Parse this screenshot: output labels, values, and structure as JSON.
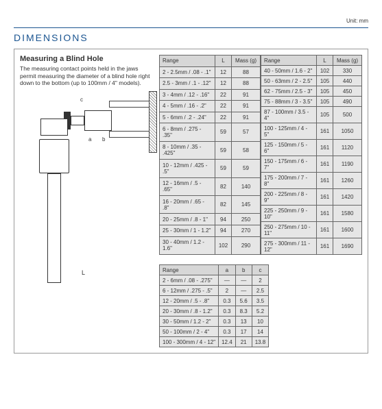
{
  "section_title": "DIMENSIONS",
  "unit_label": "Unit: mm",
  "intro": {
    "title": "Measuring a Blind Hole",
    "body": "The measuring contact points held in the jaws permit measuring the diameter of a blind hole right down to the bottom (up to 100mm / 4\" models)."
  },
  "dims": {
    "L": "L",
    "a": "a",
    "b": "b",
    "c": "c"
  },
  "main_headers": {
    "range": "Range",
    "L": "L",
    "mass": "Mass (g)"
  },
  "left_rows": [
    {
      "r": "2 - 2.5mm / .08 - .1\"",
      "L": "12",
      "m": "88"
    },
    {
      "r": "2.5 - 3mm / .1 - .12\"",
      "L": "12",
      "m": "88"
    },
    {
      "r": "3 - 4mm / .12 - .16\"",
      "L": "22",
      "m": "91"
    },
    {
      "r": "4 - 5mm / .16 - .2\"",
      "L": "22",
      "m": "91"
    },
    {
      "r": "5 - 6mm / .2 - .24\"",
      "L": "22",
      "m": "91"
    },
    {
      "r": "6 - 8mm / .275 - .35\"",
      "L": "59",
      "m": "57"
    },
    {
      "r": "8 - 10mm / .35 - .425\"",
      "L": "59",
      "m": "58"
    },
    {
      "r": "10 - 12mm / .425 - .5\"",
      "L": "59",
      "m": "59"
    },
    {
      "r": "12 - 16mm / .5 - .65\"",
      "L": "82",
      "m": "140"
    },
    {
      "r": "16 - 20mm / .65 - .8\"",
      "L": "82",
      "m": "145"
    },
    {
      "r": "20 - 25mm / .8 - 1\"",
      "L": "94",
      "m": "250"
    },
    {
      "r": "25 - 30mm / 1 - 1.2\"",
      "L": "94",
      "m": "270"
    },
    {
      "r": "30 - 40mm / 1.2 - 1.6\"",
      "L": "102",
      "m": "290"
    }
  ],
  "right_rows": [
    {
      "r": "40 - 50mm / 1.6 - 2\"",
      "L": "102",
      "m": "330"
    },
    {
      "r": "50 - 63mm / 2 - 2.5\"",
      "L": "105",
      "m": "440"
    },
    {
      "r": "62 - 75mm / 2.5 - 3\"",
      "L": "105",
      "m": "450"
    },
    {
      "r": "75 - 88mm / 3 - 3.5\"",
      "L": "105",
      "m": "490"
    },
    {
      "r": "87 - 100mm / 3.5 - 4\"",
      "L": "105",
      "m": "500"
    },
    {
      "r": "100 - 125mm / 4 - 5\"",
      "L": "161",
      "m": "1050"
    },
    {
      "r": "125 - 150mm / 5 - 6\"",
      "L": "161",
      "m": "1120"
    },
    {
      "r": "150 - 175mm / 6 - 7\"",
      "L": "161",
      "m": "1190"
    },
    {
      "r": "175 - 200mm / 7 - 8\"",
      "L": "161",
      "m": "1260"
    },
    {
      "r": "200 - 225mm / 8 - 9\"",
      "L": "161",
      "m": "1420"
    },
    {
      "r": "225 - 250mm / 9 - 10\"",
      "L": "161",
      "m": "1580"
    },
    {
      "r": "250 - 275mm / 10 - 11\"",
      "L": "161",
      "m": "1600"
    },
    {
      "r": "275 - 300mm / 11 - 12\"",
      "L": "161",
      "m": "1690"
    }
  ],
  "abc_headers": {
    "range": "Range",
    "a": "a",
    "b": "b",
    "c": "c"
  },
  "abc_rows": [
    {
      "r": "2 - 6mm / .08 - .275\"",
      "a": "—",
      "b": "—",
      "c": "2"
    },
    {
      "r": "6 - 12mm / .275 - .5\"",
      "a": "2",
      "b": "—",
      "c": "2.5"
    },
    {
      "r": "12 - 20mm / .5 - .8\"",
      "a": "0.3",
      "b": "5.6",
      "c": "3.5"
    },
    {
      "r": "20 - 30mm / .8 - 1.2\"",
      "a": "0.3",
      "b": "8.3",
      "c": "5.2"
    },
    {
      "r": "30 - 50mm / 1.2 - 2\"",
      "a": "0.3",
      "b": "13",
      "c": "10"
    },
    {
      "r": "50 - 100mm / 2 - 4\"",
      "a": "0.3",
      "b": "17",
      "c": "14"
    },
    {
      "r": "100 - 300mm / 4 - 12\"",
      "a": "12.4",
      "b": "21",
      "c": "13.8"
    }
  ],
  "colors": {
    "heading": "#1a5490",
    "cell_bg": "#e6e6e6",
    "header_bg": "#d7d7d7",
    "border": "#666"
  }
}
